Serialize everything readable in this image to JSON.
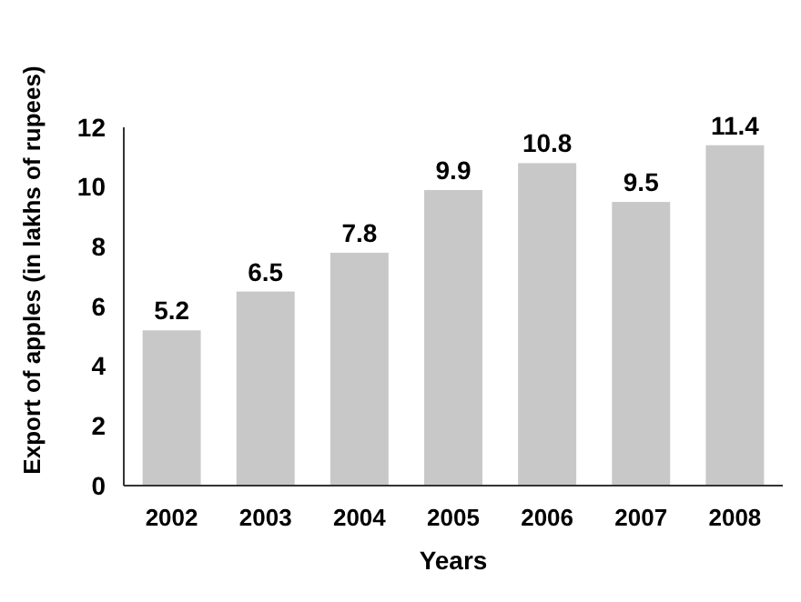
{
  "chart_data": {
    "type": "bar",
    "xlabel": "Years",
    "ylabel": "Export of apples (in lakhs of rupees)",
    "categories": [
      "2002",
      "2003",
      "2004",
      "2005",
      "2006",
      "2007",
      "2008"
    ],
    "values": [
      5.2,
      6.5,
      7.8,
      9.9,
      10.8,
      9.5,
      11.4
    ],
    "color": "#c8c8c8",
    "ylim": [
      0,
      12
    ],
    "yticks": [
      0,
      2,
      4,
      6,
      8,
      10,
      12
    ],
    "data_labels": true
  }
}
